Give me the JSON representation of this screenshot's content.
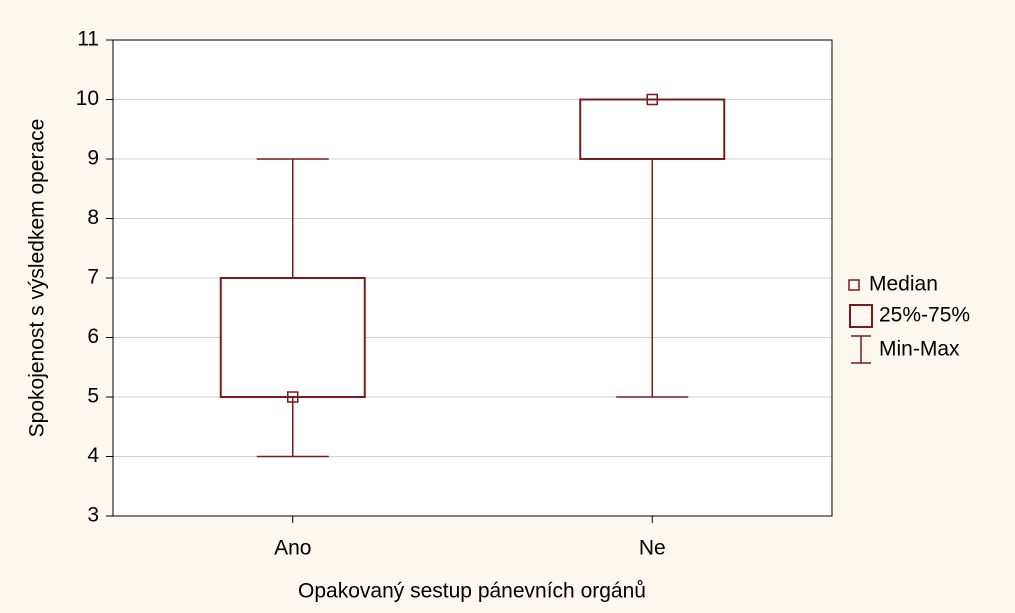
{
  "chart_data": {
    "type": "box",
    "x_label": "Opakovaný sestup pánevních orgánů",
    "y_label": "Spokojenost s výsledkem operace",
    "categories": [
      "Ano",
      "Ne"
    ],
    "boxes": [
      {
        "min": 4,
        "q1": 5,
        "median": 5,
        "q3": 7,
        "max": 9
      },
      {
        "min": 5,
        "q1": 9,
        "median": 10,
        "q3": 10,
        "max": 10
      }
    ],
    "color": "#7b1a1a",
    "ylim": [
      3,
      11
    ],
    "yticks": [
      3,
      4,
      5,
      6,
      7,
      8,
      9,
      10,
      11
    ],
    "grid": true,
    "legend": [
      "Median",
      "25%-75%",
      "Min-Max"
    ],
    "legend_position": "right"
  }
}
